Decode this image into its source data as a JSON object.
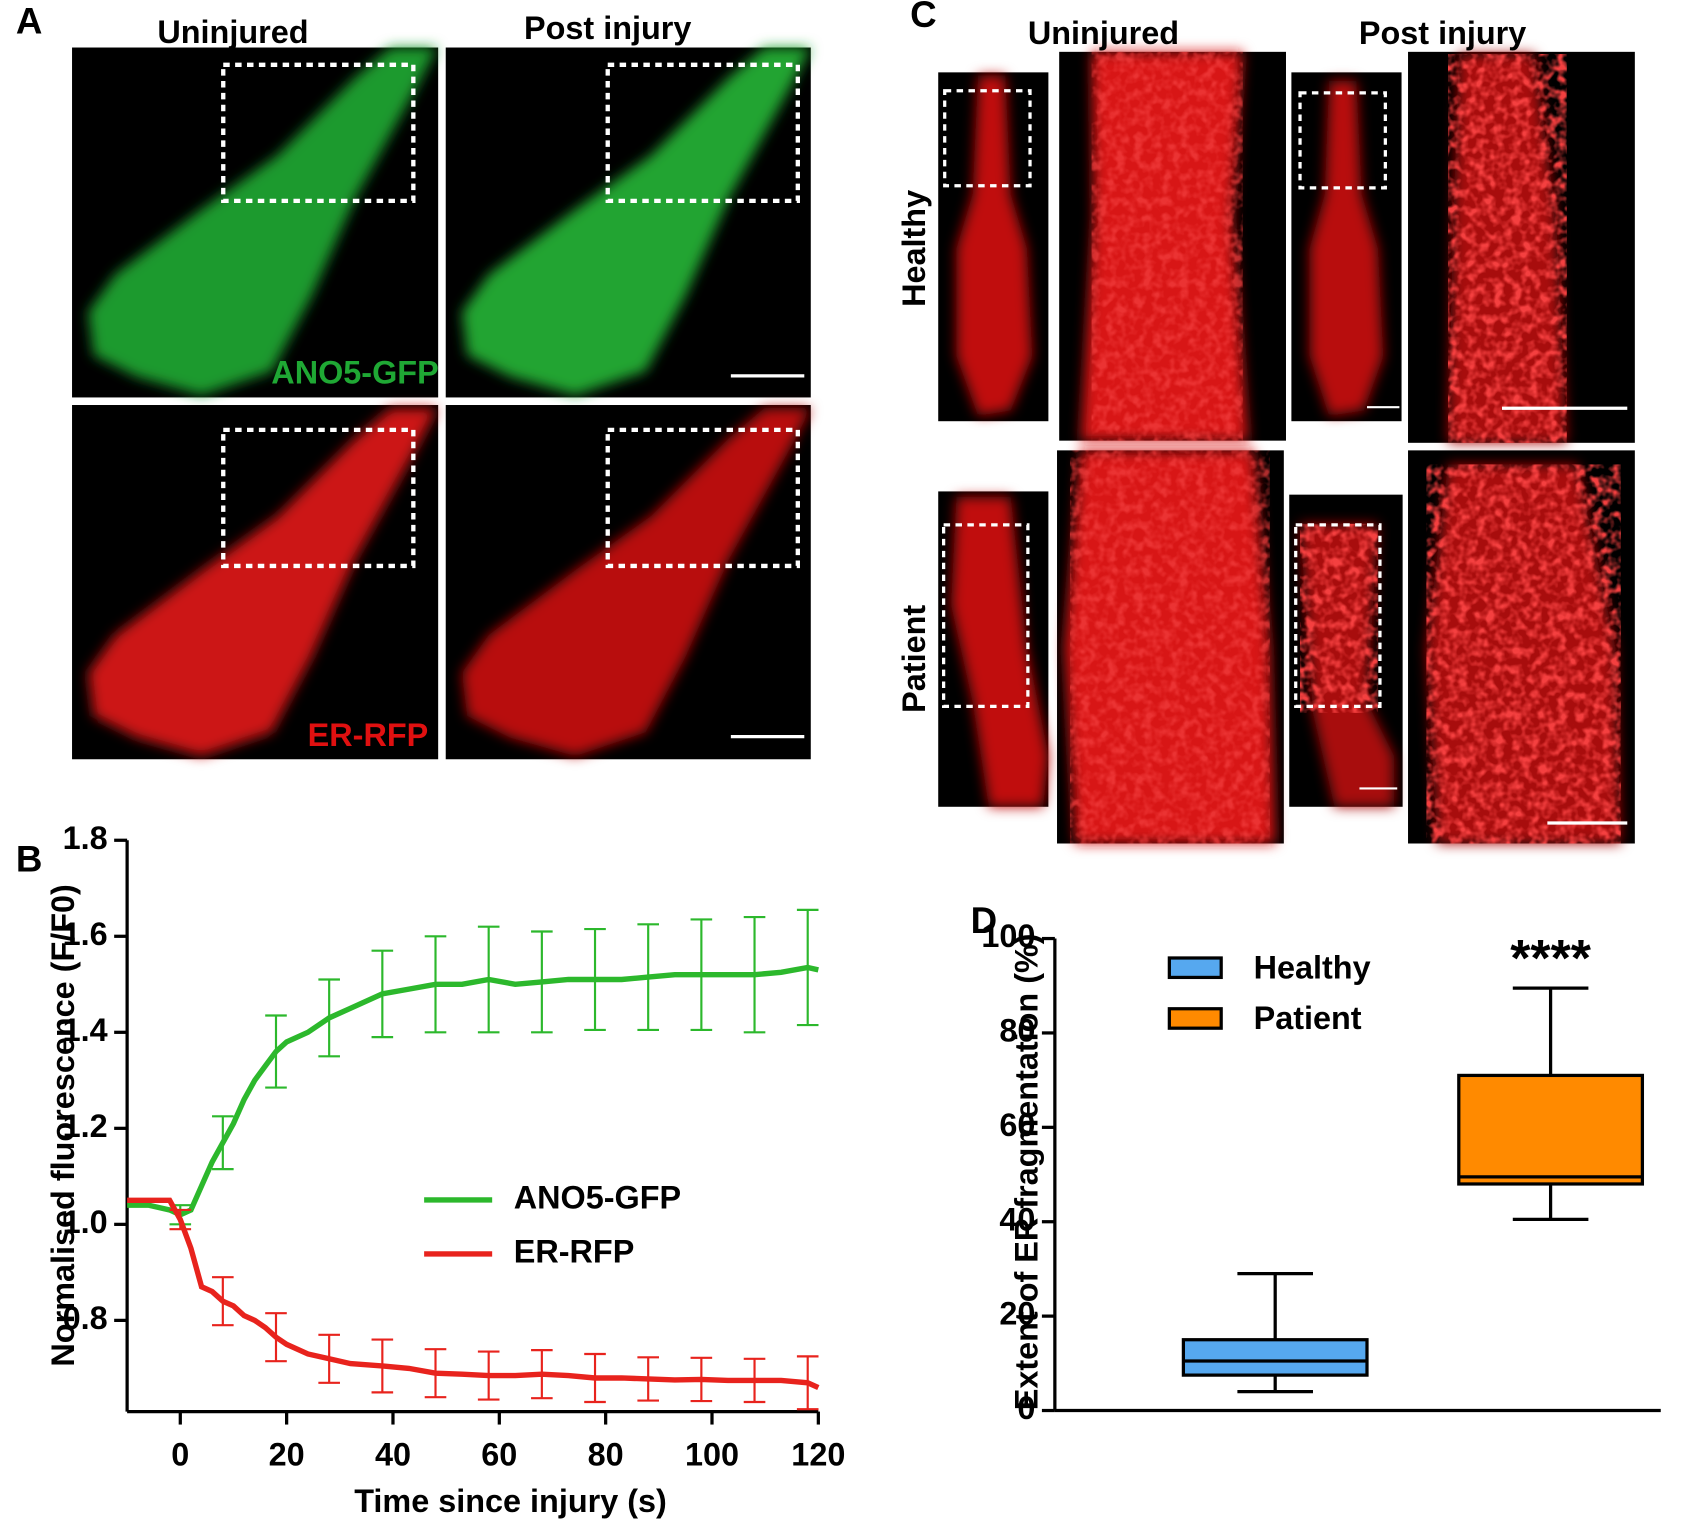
{
  "panels": {
    "a": {
      "label": "A",
      "col1": "Uninjured",
      "col2": "Post injury",
      "green": "ANO5-GFP",
      "red": "ER-RFP"
    },
    "b": {
      "label": "B"
    },
    "c": {
      "label": "C",
      "col1": "Uninjured",
      "col2": "Post injury",
      "row1": "Healthy",
      "row2": "Patient"
    },
    "d": {
      "label": "D"
    }
  },
  "chart_data": [
    {
      "type": "line",
      "x_label": "Time since injury (s)",
      "y_label": "Normalised fluorescence (F/F0)",
      "x": [
        -10,
        -6,
        -2,
        0,
        2,
        4,
        6,
        8,
        10,
        12,
        14,
        16,
        18,
        20,
        24,
        28,
        32,
        38,
        43,
        48,
        53,
        58,
        63,
        68,
        73,
        78,
        83,
        88,
        93,
        98,
        103,
        108,
        113,
        118,
        120
      ],
      "xlim": [
        -10,
        120
      ],
      "xticks": [
        0,
        20,
        40,
        60,
        80,
        100,
        120
      ],
      "ylim": [
        0.61,
        1.8
      ],
      "yticks": [
        0.8,
        {
          "value": 1,
          "label": "1.0"
        },
        1.2,
        1.4,
        1.6,
        1.8
      ],
      "series": [
        {
          "name": "ANO5-GFP",
          "color": "#2cb82c",
          "values": [
            1.04,
            1.04,
            1.03,
            1.02,
            1.03,
            1.08,
            1.13,
            1.17,
            1.21,
            1.26,
            1.3,
            1.33,
            1.36,
            1.38,
            1.4,
            1.43,
            1.45,
            1.48,
            1.49,
            1.5,
            1.5,
            1.51,
            1.5,
            1.505,
            1.51,
            1.51,
            1.51,
            1.515,
            1.52,
            1.52,
            1.52,
            1.52,
            1.525,
            1.535,
            1.53
          ],
          "errors": [
            null,
            null,
            null,
            0.02,
            null,
            null,
            null,
            0.055,
            null,
            null,
            null,
            null,
            0.075,
            null,
            null,
            0.08,
            null,
            0.09,
            null,
            0.1,
            null,
            0.11,
            null,
            0.105,
            null,
            0.105,
            null,
            0.11,
            null,
            0.115,
            null,
            0.12,
            null,
            0.12,
            null
          ]
        },
        {
          "name": "ER-RFP",
          "color": "#e8231d",
          "values": [
            1.05,
            1.05,
            1.05,
            1.01,
            0.95,
            0.87,
            0.86,
            0.84,
            0.83,
            0.81,
            0.8,
            0.785,
            0.765,
            0.75,
            0.73,
            0.72,
            0.71,
            0.705,
            0.7,
            0.69,
            0.688,
            0.685,
            0.685,
            0.688,
            0.685,
            0.68,
            0.68,
            0.678,
            0.676,
            0.677,
            0.675,
            0.675,
            0.675,
            0.67,
            0.66
          ],
          "errors": [
            null,
            null,
            null,
            0.02,
            null,
            null,
            null,
            0.05,
            null,
            null,
            null,
            null,
            0.05,
            null,
            null,
            0.05,
            null,
            0.055,
            null,
            0.05,
            null,
            0.05,
            null,
            0.05,
            null,
            0.05,
            null,
            0.045,
            null,
            0.045,
            null,
            0.045,
            null,
            0.055,
            null
          ]
        }
      ],
      "legend": "center-right"
    },
    {
      "type": "box",
      "y_label": "Extent of ER fragmentation (%)",
      "ylim": [
        0,
        100
      ],
      "yticks": [
        0,
        20,
        40,
        60,
        80,
        100
      ],
      "series": [
        {
          "name": "Healthy",
          "color": "#56a8ef",
          "min": 4,
          "q1": 7.5,
          "median": 10.5,
          "q3": 15,
          "max": 29
        },
        {
          "name": "Patient",
          "color": "#ff8a00",
          "min": 40.5,
          "q1": 48,
          "median": 49.5,
          "q3": 71,
          "max": 89.5,
          "annotation": "****"
        }
      ],
      "legend": "top-left"
    }
  ]
}
